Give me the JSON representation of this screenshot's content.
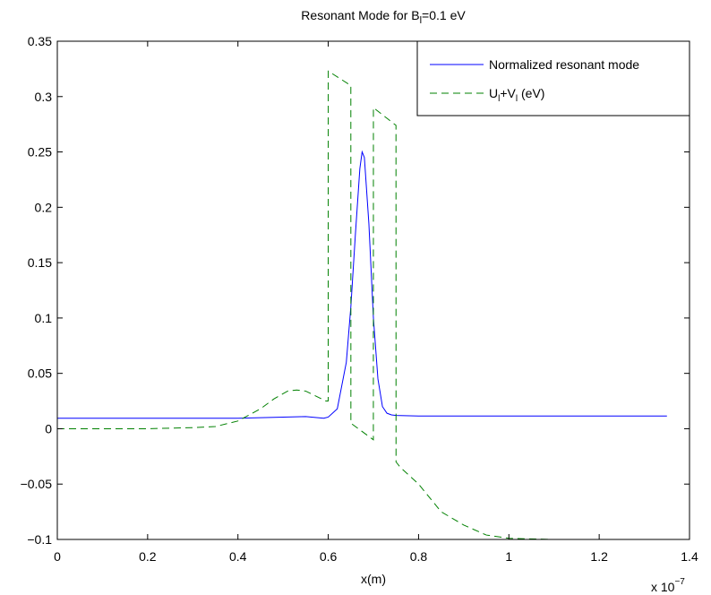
{
  "figure": {
    "title_main": "Resonant Mode for B",
    "title_sub": "l",
    "title_tail": "=0.1 eV"
  },
  "chart_data": {
    "type": "line",
    "title": "Resonant Mode for Bl=0.1 eV",
    "xlabel": "x(m)",
    "ylabel": "",
    "x_scale_label": {
      "base": "x 10",
      "exponent": "−7"
    },
    "xlim": [
      0,
      1.4
    ],
    "ylim": [
      -0.1,
      0.35
    ],
    "grid": false,
    "legend_position": "top-right",
    "x_ticks": [
      {
        "value": 0,
        "label": "0"
      },
      {
        "value": 0.2,
        "label": "0.2"
      },
      {
        "value": 0.4,
        "label": "0.4"
      },
      {
        "value": 0.6,
        "label": "0.6"
      },
      {
        "value": 0.8,
        "label": "0.8"
      },
      {
        "value": 1.0,
        "label": "1"
      },
      {
        "value": 1.2,
        "label": "1.2"
      },
      {
        "value": 1.4,
        "label": "1.4"
      }
    ],
    "y_ticks": [
      {
        "value": 0.35,
        "label": "0.35"
      },
      {
        "value": 0.3,
        "label": "0.3"
      },
      {
        "value": 0.25,
        "label": "0.25"
      },
      {
        "value": 0.2,
        "label": "0.2"
      },
      {
        "value": 0.15,
        "label": "0.15"
      },
      {
        "value": 0.1,
        "label": "0.1"
      },
      {
        "value": 0.05,
        "label": "0.05"
      },
      {
        "value": 0,
        "label": "0"
      },
      {
        "value": -0.05,
        "label": "−0.05"
      },
      {
        "value": -0.1,
        "label": "−0.1"
      }
    ],
    "series": [
      {
        "name": "Normalized resonant mode",
        "color": "#0000ff",
        "style": "solid",
        "x": [
          0,
          0.2,
          0.4,
          0.5,
          0.55,
          0.59,
          0.6,
          0.62,
          0.64,
          0.65,
          0.66,
          0.67,
          0.675,
          0.68,
          0.69,
          0.7,
          0.71,
          0.72,
          0.73,
          0.74,
          0.75,
          0.8,
          1.0,
          1.2,
          1.35
        ],
        "y": [
          0.0095,
          0.0095,
          0.0095,
          0.0105,
          0.011,
          0.0095,
          0.0105,
          0.018,
          0.06,
          0.11,
          0.175,
          0.235,
          0.25,
          0.245,
          0.185,
          0.1,
          0.045,
          0.02,
          0.014,
          0.0125,
          0.012,
          0.0115,
          0.0115,
          0.0115,
          0.0115
        ]
      },
      {
        "name": "U_l+V_l (eV)",
        "color": "#008000",
        "style": "dashed",
        "x": [
          0,
          0.2,
          0.3,
          0.35,
          0.4,
          0.45,
          0.48,
          0.51,
          0.53,
          0.55,
          0.57,
          0.595,
          0.5999,
          0.6,
          0.65,
          0.6501,
          0.6999,
          0.7,
          0.75,
          0.7501,
          0.76,
          0.8,
          0.85,
          0.9,
          0.95,
          1.0,
          1.1,
          1.2,
          1.35
        ],
        "y": [
          0,
          0,
          0.001,
          0.002,
          0.007,
          0.018,
          0.027,
          0.034,
          0.035,
          0.034,
          0.03,
          0.025,
          0.025,
          0.323,
          0.31,
          0.005,
          -0.01,
          0.29,
          0.274,
          -0.03,
          -0.035,
          -0.05,
          -0.075,
          -0.087,
          -0.096,
          -0.099,
          -0.1,
          -0.1,
          -0.1
        ]
      }
    ]
  }
}
